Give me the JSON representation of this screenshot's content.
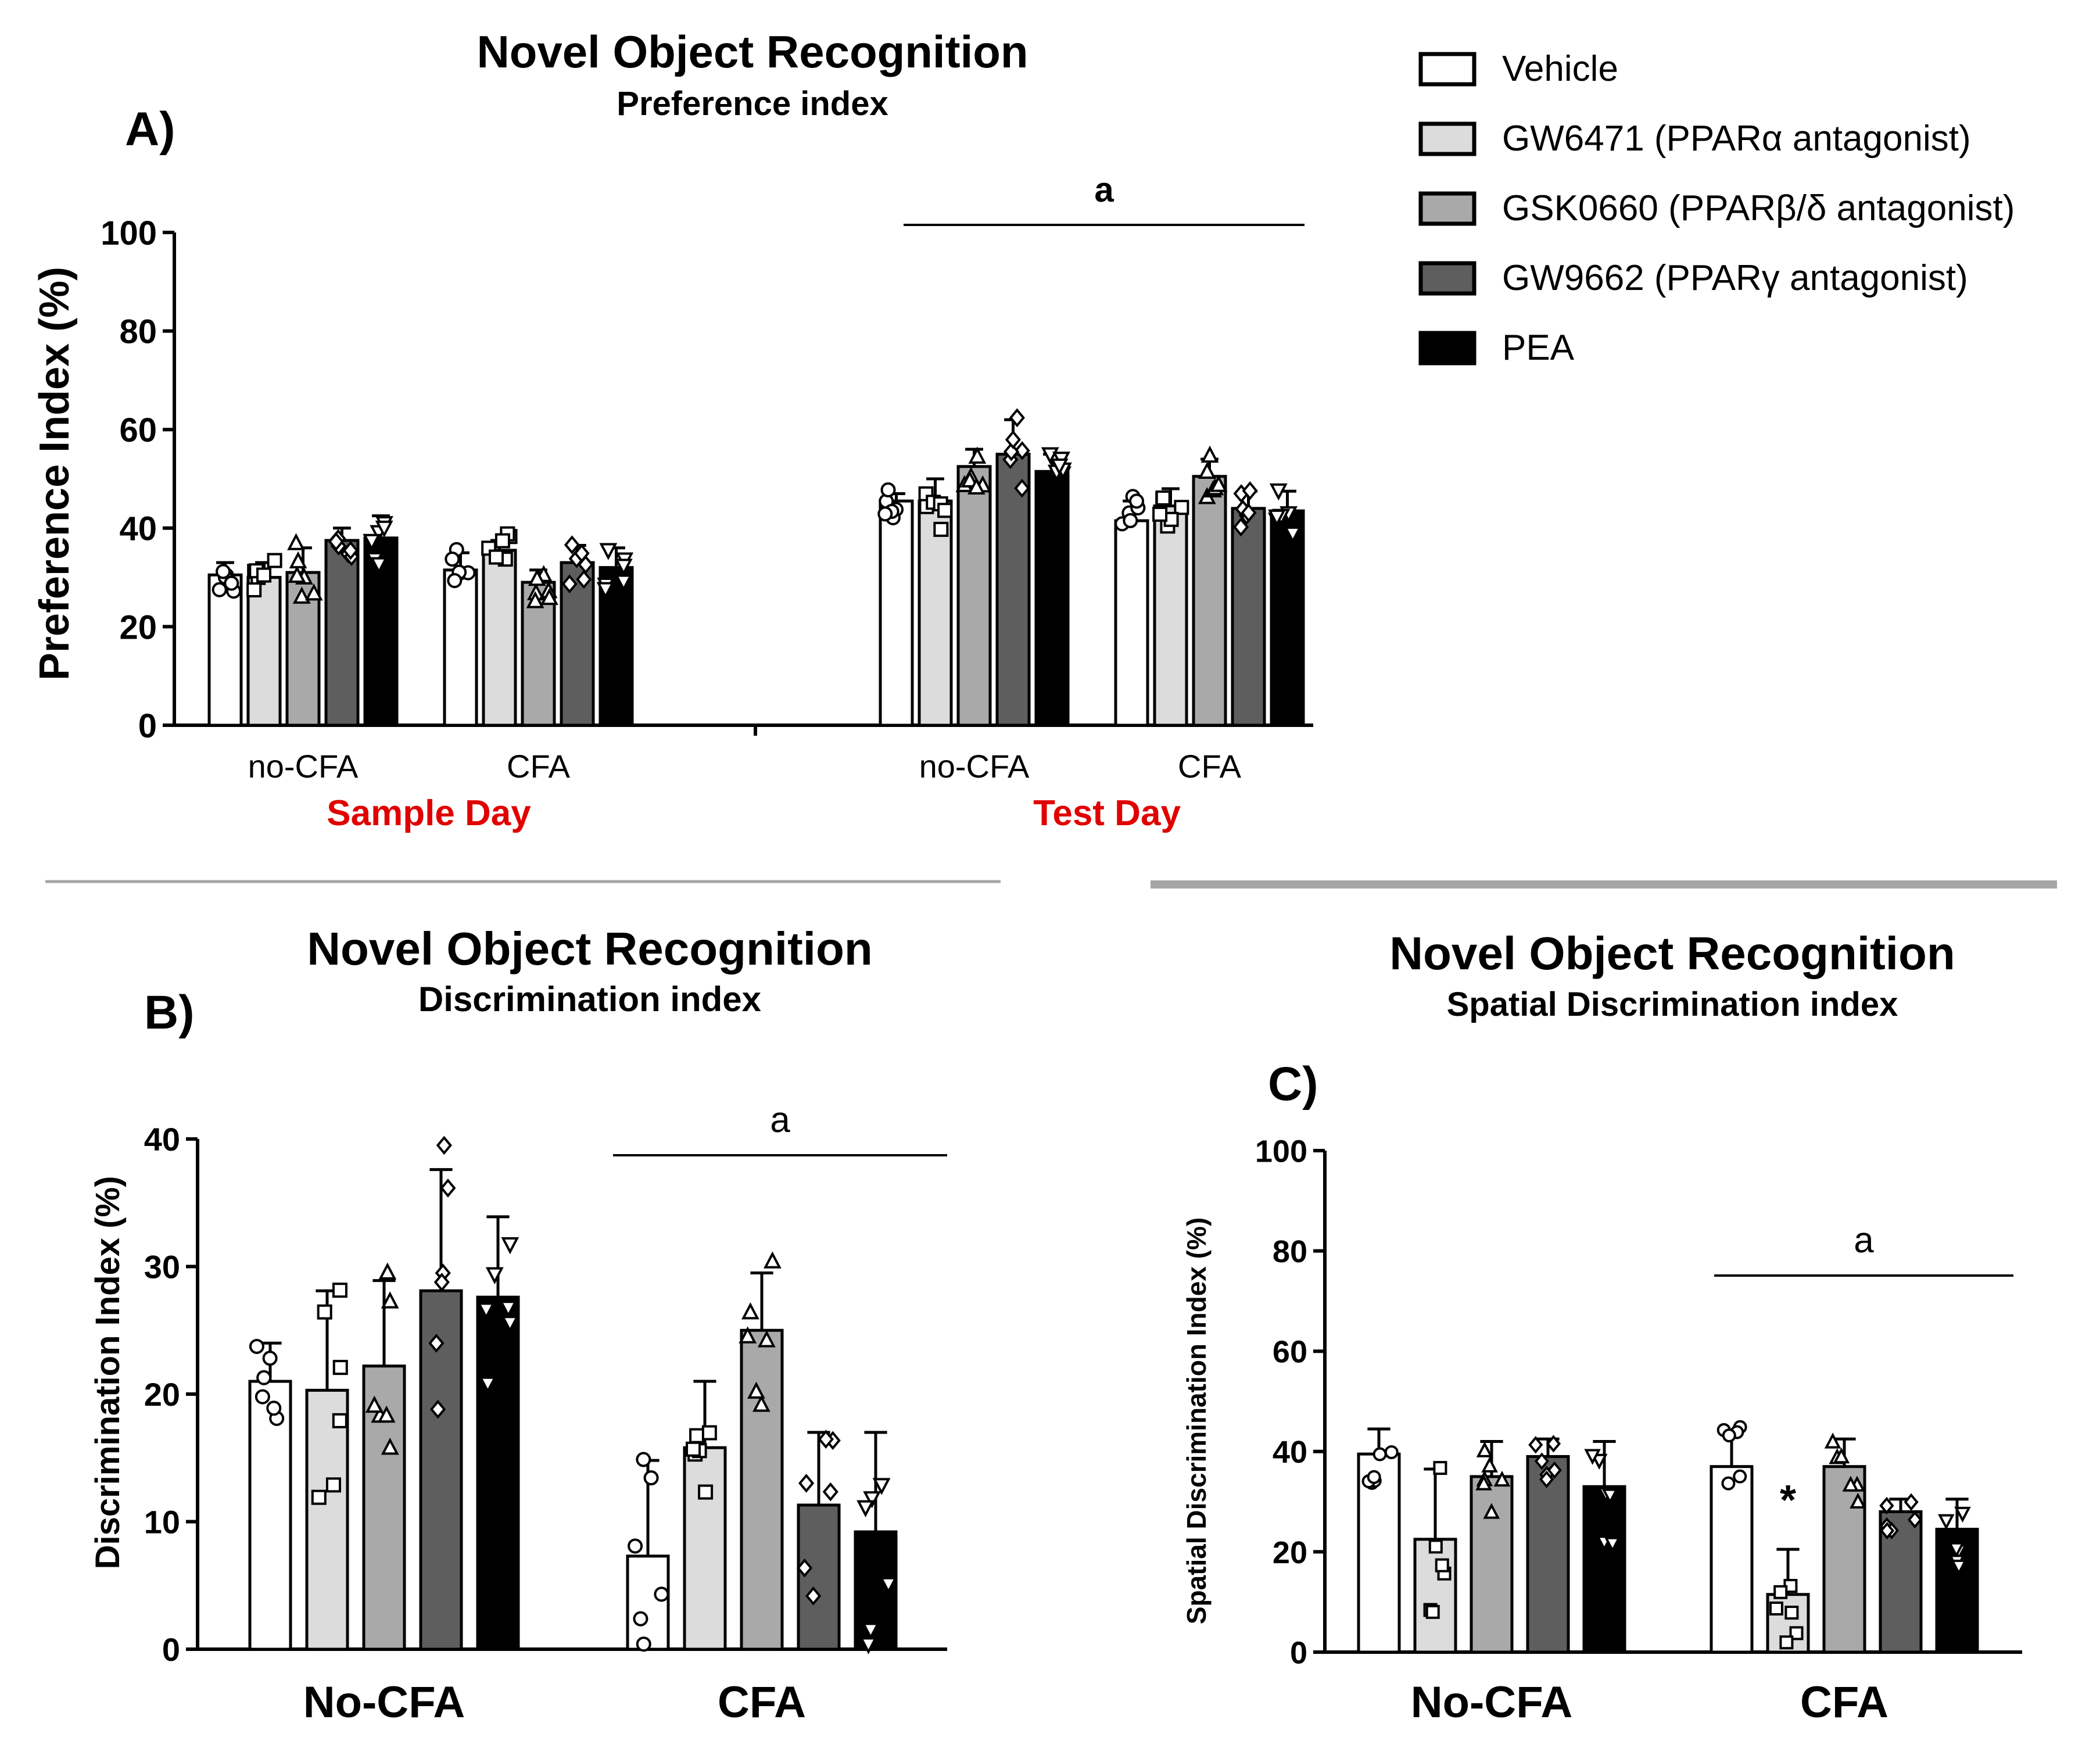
{
  "legend": {
    "items": [
      {
        "name": "Vehicle",
        "color": "#ffffff"
      },
      {
        "name": "GW6471  (PPARα antagonist)",
        "color": "#dcdcdc"
      },
      {
        "name": "GSK0660 (PPARβ/δ antagonist)",
        "color": "#a9a9a9"
      },
      {
        "name": "GW9662  (PPARγ antagonist)",
        "color": "#5e5e5e"
      },
      {
        "name": "PEA",
        "color": "#000000"
      }
    ]
  },
  "chart_data": [
    {
      "panel": "A)",
      "type": "bar",
      "title": "Novel Object Recognition",
      "subtitle": "Preference index",
      "ylabel": "Preference Index (%)",
      "ylim": [
        0,
        100
      ],
      "yticks": [
        0,
        20,
        40,
        60,
        80,
        100
      ],
      "categories": [
        "no-CFA",
        "CFA",
        "no-CFA",
        "CFA"
      ],
      "sections": [
        "Sample Day",
        "Test Day"
      ],
      "series": [
        {
          "name": "Vehicle",
          "values": [
            30.5,
            31.5,
            45.5,
            41.5
          ],
          "errors": [
            2.5,
            3.5,
            1.5,
            4.0
          ]
        },
        {
          "name": "GW6471",
          "values": [
            30.0,
            35.5,
            45.5,
            44.5
          ],
          "errors": [
            3.0,
            2.0,
            4.5,
            3.5
          ]
        },
        {
          "name": "GSK0660",
          "values": [
            31.0,
            29.0,
            52.5,
            50.5
          ],
          "errors": [
            5.0,
            2.5,
            3.5,
            3.5
          ]
        },
        {
          "name": "GW9662",
          "values": [
            37.5,
            33.0,
            55.0,
            44.0
          ],
          "errors": [
            2.5,
            3.5,
            7.0,
            3.5
          ]
        },
        {
          "name": "PEA",
          "values": [
            38.0,
            32.0,
            51.5,
            43.5
          ],
          "errors": [
            4.5,
            4.0,
            3.5,
            4.0
          ]
        }
      ],
      "annotations": [
        {
          "text": "a",
          "over": "Test Day"
        }
      ]
    },
    {
      "panel": "B)",
      "type": "bar",
      "title": "Novel Object Recognition",
      "subtitle": "Discrimination index",
      "ylabel": "Discrimination Index (%)",
      "ylim": [
        0,
        40
      ],
      "yticks": [
        0,
        10,
        20,
        30,
        40
      ],
      "categories": [
        "No-CFA",
        "CFA"
      ],
      "series": [
        {
          "name": "Vehicle",
          "values": [
            21.0,
            7.3
          ],
          "errors": [
            3.0,
            7.5
          ]
        },
        {
          "name": "GW6471",
          "values": [
            20.3,
            15.8
          ],
          "errors": [
            7.8,
            5.2
          ]
        },
        {
          "name": "GSK0660",
          "values": [
            22.2,
            25.0
          ],
          "errors": [
            6.7,
            4.5
          ]
        },
        {
          "name": "GW9662",
          "values": [
            28.1,
            11.3
          ],
          "errors": [
            9.5,
            5.7
          ]
        },
        {
          "name": "PEA",
          "values": [
            27.6,
            9.2
          ],
          "errors": [
            6.3,
            7.8
          ]
        }
      ],
      "annotations": [
        {
          "text": "a",
          "over": "CFA"
        }
      ]
    },
    {
      "panel": "C)",
      "type": "bar",
      "title": "Novel Object Recognition",
      "subtitle": "Spatial Discrimination index",
      "ylabel": "Spatial Discrimination Index (%)",
      "ylim": [
        0,
        100
      ],
      "yticks": [
        0,
        20,
        40,
        60,
        80,
        100
      ],
      "categories": [
        "No-CFA",
        "CFA"
      ],
      "series": [
        {
          "name": "Vehicle",
          "values": [
            39.5,
            37.0
          ],
          "errors": [
            5.0,
            6.5
          ]
        },
        {
          "name": "GW6471",
          "values": [
            22.5,
            11.5
          ],
          "errors": [
            14.0,
            9.0
          ]
        },
        {
          "name": "GSK0660",
          "values": [
            35.0,
            37.0
          ],
          "errors": [
            7.0,
            5.5
          ]
        },
        {
          "name": "GW9662",
          "values": [
            39.0,
            28.0
          ],
          "errors": [
            3.5,
            2.5
          ]
        },
        {
          "name": "PEA",
          "values": [
            33.0,
            24.5
          ],
          "errors": [
            9.0,
            6.0
          ]
        }
      ],
      "annotations": [
        {
          "text": "a",
          "over": "CFA"
        },
        {
          "text": "*",
          "over": "CFA GW6471"
        }
      ]
    }
  ]
}
